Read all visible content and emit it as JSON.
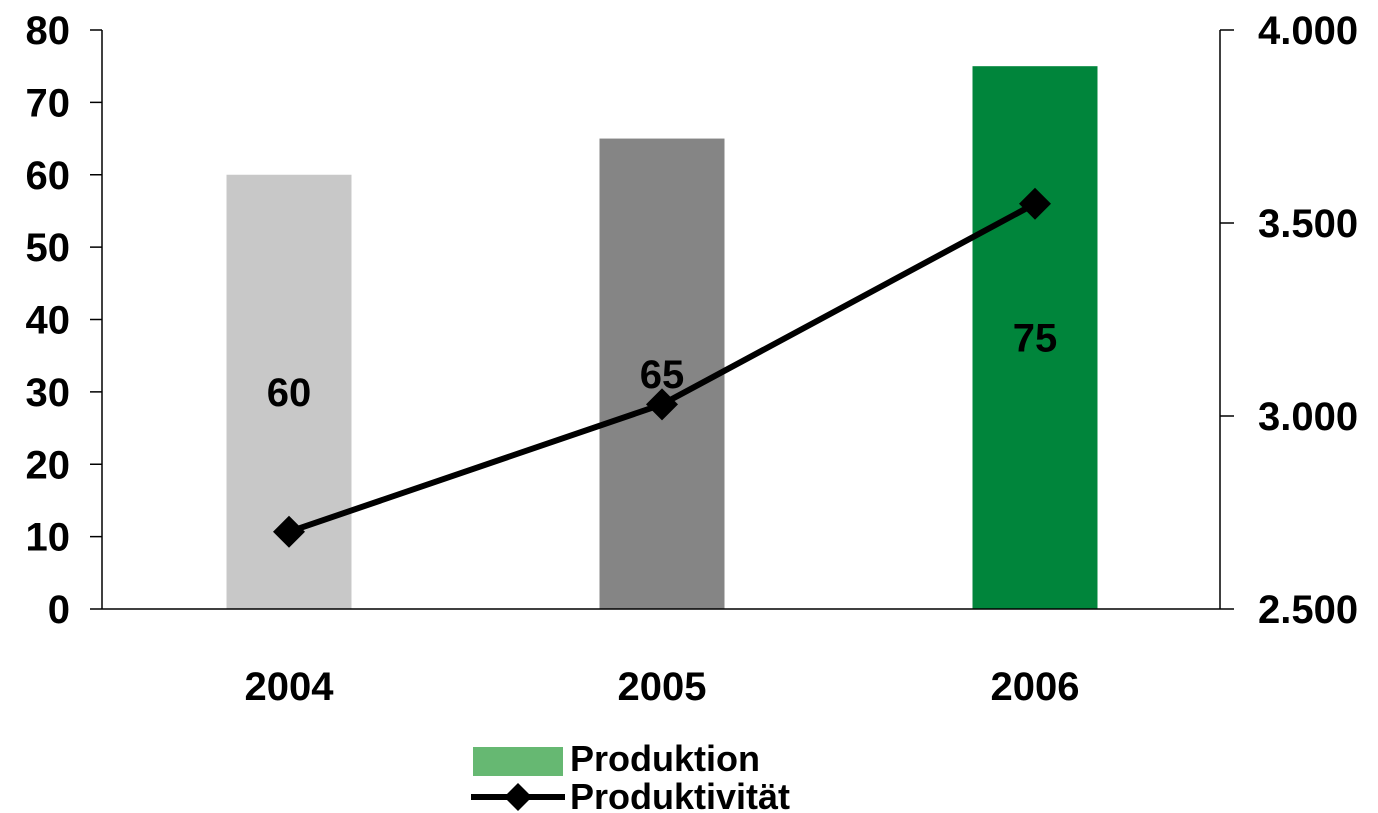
{
  "chart_data": {
    "type": "bar",
    "categories": [
      "2004",
      "2005",
      "2006"
    ],
    "series": [
      {
        "name": "Produktion",
        "type": "bar",
        "axis": "left",
        "values": [
          60,
          65,
          75
        ],
        "data_labels": [
          "60",
          "65",
          "75"
        ],
        "bar_colors": [
          "#c8c8c8",
          "#858585",
          "#00853b"
        ],
        "legend_color": "#66b872"
      },
      {
        "name": "Produktivität",
        "type": "line",
        "axis": "right",
        "values": [
          2700,
          3030,
          3550
        ],
        "color": "#000000",
        "marker": "diamond"
      }
    ],
    "y_left": {
      "ylim": [
        0,
        80
      ],
      "ticks": [
        0,
        10,
        20,
        30,
        40,
        50,
        60,
        70,
        80
      ],
      "tick_labels": [
        "0",
        "10",
        "20",
        "30",
        "40",
        "50",
        "60",
        "70",
        "80"
      ]
    },
    "y_right": {
      "ylim": [
        2500,
        4000
      ],
      "ticks": [
        2500,
        3000,
        3500,
        4000
      ],
      "tick_labels": [
        "2.500",
        "3.000",
        "3.500",
        "4.000"
      ]
    },
    "title": "",
    "xlabel": "",
    "ylabel": "",
    "grid": false,
    "legend_placement": "bottom-center"
  }
}
